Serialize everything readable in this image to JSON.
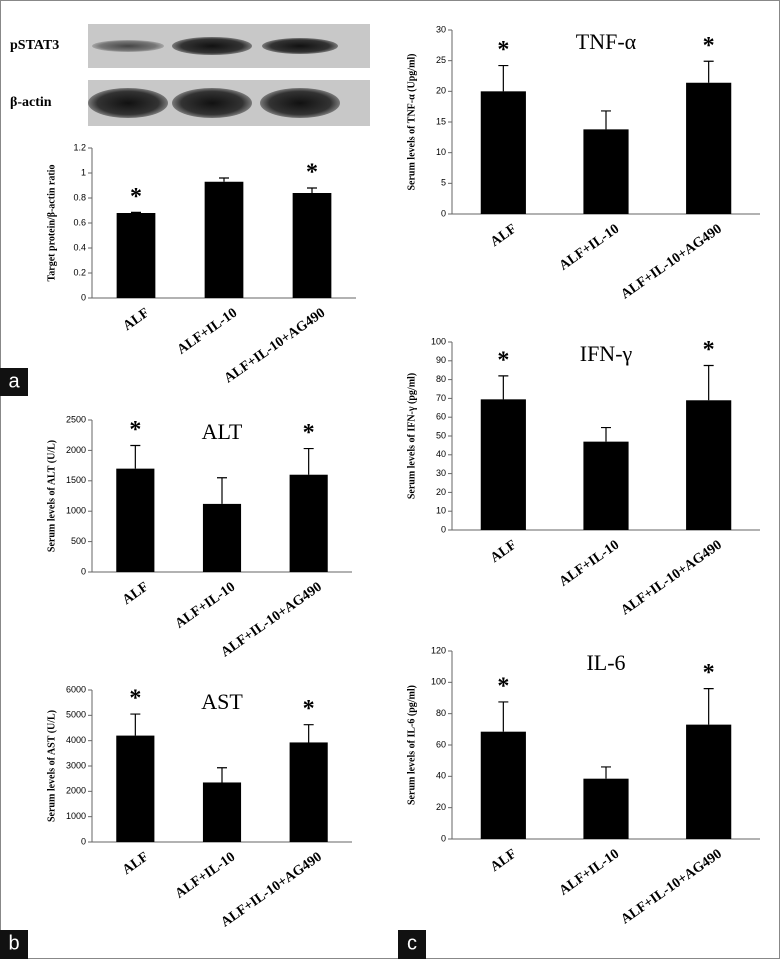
{
  "panel_labels": [
    "a",
    "b",
    "c"
  ],
  "blot": {
    "labels": [
      "pSTAT3",
      "β-actin"
    ]
  },
  "chart_data": [
    {
      "type": "bar",
      "ylabel": "Target protein/β-actin ratio",
      "categories": [
        "ALF",
        "ALF+IL-10",
        "ALF+IL-10+AG490"
      ],
      "values": [
        0.68,
        0.93,
        0.84
      ],
      "errors": [
        0.005,
        0.03,
        0.04
      ],
      "markers": [
        "*",
        null,
        "*"
      ],
      "color": "#000000",
      "ylim": [
        0,
        1.2
      ],
      "yticks": [
        0,
        0.2,
        0.4,
        0.6,
        0.8,
        1,
        1.2
      ]
    },
    {
      "type": "bar",
      "title": "ALT",
      "ylabel": "Serum levels of ALT (U/L)",
      "categories": [
        "ALF",
        "ALF+IL-10",
        "ALF+IL-10+AG490"
      ],
      "values": [
        1700,
        1120,
        1600
      ],
      "errors": [
        380,
        430,
        430
      ],
      "markers": [
        "*",
        null,
        "*"
      ],
      "color": "#000000",
      "ylim": [
        0,
        2500
      ],
      "yticks": [
        0,
        500,
        1000,
        1500,
        2000,
        2500
      ]
    },
    {
      "type": "bar",
      "title": "AST",
      "ylabel": "Serum levels of AST (U/L)",
      "categories": [
        "ALF",
        "ALF+IL-10",
        "ALF+IL-10+AG490"
      ],
      "values": [
        4200,
        2350,
        3930
      ],
      "errors": [
        850,
        580,
        700
      ],
      "markers": [
        "*",
        null,
        "*"
      ],
      "color": "#000000",
      "ylim": [
        0,
        6000
      ],
      "yticks": [
        0,
        1000,
        2000,
        3000,
        4000,
        5000,
        6000
      ]
    },
    {
      "type": "bar",
      "title": "TNF-α",
      "ylabel": "Serum levels of TNF-α (Upg/ml)",
      "categories": [
        "ALF",
        "ALF+IL-10",
        "ALF+IL-10+AG490"
      ],
      "values": [
        20,
        13.8,
        21.4
      ],
      "errors": [
        4.2,
        3,
        3.5
      ],
      "markers": [
        "*",
        null,
        "*"
      ],
      "color": "#000000",
      "ylim": [
        0,
        30
      ],
      "yticks": [
        0,
        5,
        10,
        15,
        20,
        25,
        30
      ]
    },
    {
      "type": "bar",
      "title": "IFN-γ",
      "ylabel": "Serum levels of IFN-γ (pg/ml)",
      "categories": [
        "ALF",
        "ALF+IL-10",
        "ALF+IL-10+AG490"
      ],
      "values": [
        69.5,
        47,
        69
      ],
      "errors": [
        12.5,
        7.5,
        18.5
      ],
      "markers": [
        "*",
        null,
        "*"
      ],
      "color": "#000000",
      "ylim": [
        0,
        100
      ],
      "yticks": [
        0,
        10,
        20,
        30,
        40,
        50,
        60,
        70,
        80,
        90,
        100
      ]
    },
    {
      "type": "bar",
      "title": "IL-6",
      "ylabel": "Serum levels of IL-6 (pg/ml)",
      "categories": [
        "ALF",
        "ALF+IL-10",
        "ALF+IL-10+AG490"
      ],
      "values": [
        68.5,
        38.5,
        73
      ],
      "errors": [
        19,
        7.5,
        23
      ],
      "markers": [
        "*",
        null,
        "*"
      ],
      "color": "#000000",
      "ylim": [
        0,
        120
      ],
      "yticks": [
        0,
        20,
        40,
        60,
        80,
        100,
        120
      ]
    }
  ]
}
